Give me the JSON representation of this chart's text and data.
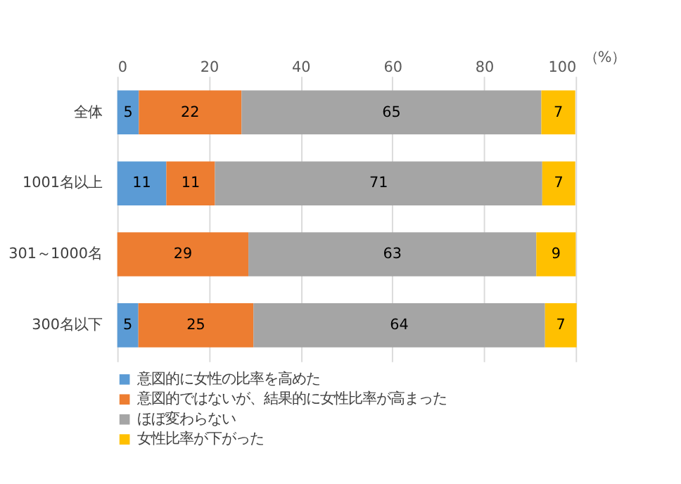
{
  "chart_data": {
    "type": "bar",
    "orientation": "horizontal",
    "stacked": true,
    "xlabel": "（%）",
    "categories": [
      "全体",
      "1001名以上",
      "301～1000名",
      "300名以下"
    ],
    "series": [
      {
        "name": "意図的に女性の比率を高めた",
        "color": "#5b9bd5",
        "values": [
          4.7,
          10.7,
          0,
          4.6
        ],
        "value_labels": [
          "5",
          "11",
          null,
          "5"
        ]
      },
      {
        "name": "意図的ではないが、結果的に女性比率が高まった",
        "color": "#ed7d31",
        "values": [
          22.4,
          10.6,
          28.6,
          25.1
        ],
        "value_labels": [
          "22",
          "11",
          "29",
          "25"
        ]
      },
      {
        "name": "ほぼ変わらない",
        "color": "#a5a5a5",
        "values": [
          65.4,
          71.4,
          62.8,
          63.6
        ],
        "value_labels": [
          "65",
          "71",
          "63",
          "64"
        ]
      },
      {
        "name": "女性比率が下がった",
        "color": "#ffc000",
        "values": [
          7.4,
          7.2,
          8.6,
          6.9
        ],
        "value_labels": [
          "7",
          "7",
          "9",
          "7"
        ]
      }
    ],
    "xlim": [
      0,
      100
    ],
    "xticks": [
      0,
      20,
      40,
      60,
      80,
      100
    ],
    "grid": "x",
    "legend": "bottom"
  }
}
